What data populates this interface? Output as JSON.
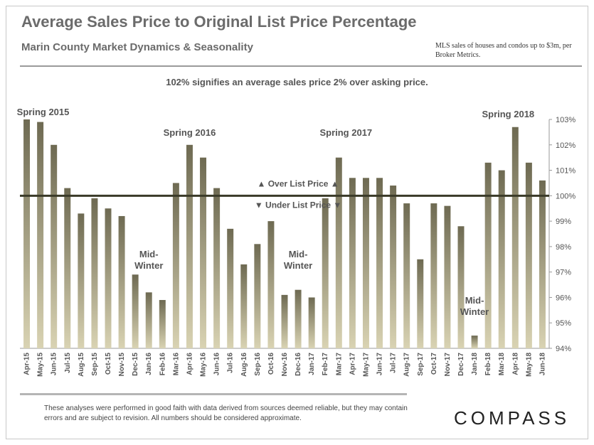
{
  "header": {
    "title": "Average Sales Price to Original List Price Percentage",
    "subtitle": "Marin County Market Dynamics & Seasonality",
    "source_note": "MLS sales of houses and condos up to $3m, per Broker Metrics."
  },
  "note": "102% signifies  an average sales  price 2% over asking  price.",
  "footer": {
    "disclaimer": "These analyses were performed in good faith with data derived from sources deemed reliable, but they may contain errors and are subject to revision. All numbers should be considered  approximate.",
    "logo": "COMPASS"
  },
  "colors": {
    "bar_top": "#6e6a52",
    "bar_bottom": "#d9d3b3",
    "reference_line": "#3a3a28"
  },
  "chart_data": {
    "type": "bar",
    "title": "Average Sales Price to Original List Price Percentage",
    "xlabel": "",
    "ylabel": "",
    "ylim": [
      94,
      103
    ],
    "y_ticks": [
      "94%",
      "95%",
      "96%",
      "97%",
      "98%",
      "99%",
      "100%",
      "101%",
      "102%",
      "103%"
    ],
    "y_axis_side": "right",
    "reference_line": 100,
    "categories": [
      "Apr-15",
      "May-15",
      "Jun-15",
      "Jul-15",
      "Aug-15",
      "Sep-15",
      "Oct-15",
      "Nov-15",
      "Dec-15",
      "Jan-16",
      "Feb-16",
      "Mar-16",
      "Apr-16",
      "May-16",
      "Jun-16",
      "Jul-16",
      "Aug-16",
      "Sep-16",
      "Oct-16",
      "Nov-16",
      "Dec-16",
      "Jan-17",
      "Feb-17",
      "Mar-17",
      "Apr-17",
      "May-17",
      "Jun-17",
      "Jul-17",
      "Aug-17",
      "Sep-17",
      "Oct-17",
      "Nov-17",
      "Dec-17",
      "Jan-18",
      "Feb-18",
      "Mar-18",
      "Apr-18",
      "May-18",
      "Jun-18"
    ],
    "values": [
      103.0,
      102.9,
      102.0,
      100.3,
      99.3,
      99.9,
      99.5,
      99.2,
      96.9,
      96.2,
      95.9,
      100.5,
      102.0,
      101.5,
      100.3,
      98.7,
      97.3,
      98.1,
      99.0,
      96.1,
      96.3,
      96.0,
      99.9,
      101.5,
      100.7,
      100.7,
      100.7,
      100.4,
      99.7,
      97.5,
      99.7,
      99.6,
      98.8,
      94.5,
      101.3,
      101.0,
      102.7,
      101.3,
      100.6
    ],
    "annotations": [
      {
        "text": "Spring 2015",
        "category": "Apr-15"
      },
      {
        "text": "Spring 2016",
        "category": "Apr-16"
      },
      {
        "text": "Spring 2017",
        "category": "Mar-17"
      },
      {
        "text": "Spring 2018",
        "category": "Apr-18"
      },
      {
        "text": "Mid-\nWinter",
        "category": "Jan-16"
      },
      {
        "text": "Mid-\nWinter",
        "category": "Dec-16"
      },
      {
        "text": "Mid-\nWinter",
        "category": "Jan-18"
      },
      {
        "text": "▲ Over List Price ▲",
        "category": "Dec-16"
      },
      {
        "text": "▼ Under List Price ▼",
        "category": "Dec-16"
      }
    ]
  }
}
